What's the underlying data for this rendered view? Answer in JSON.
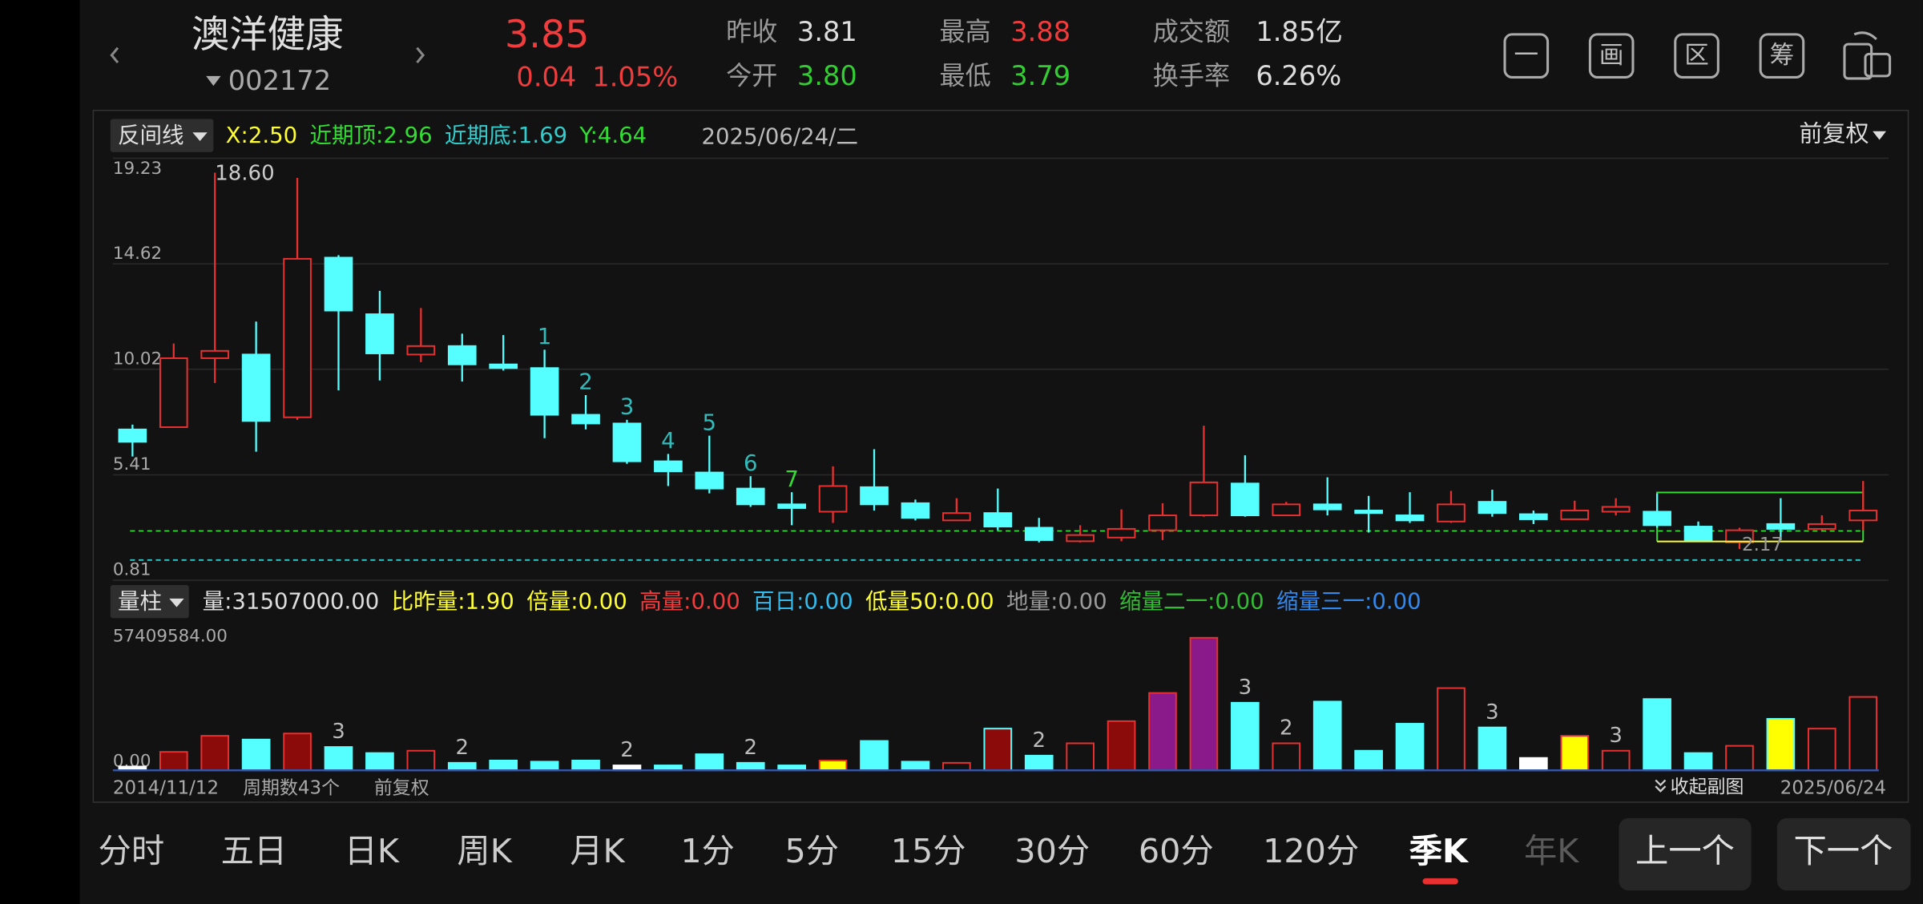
{
  "header": {
    "name": "澳洋健康",
    "code": "002172",
    "price": "3.85",
    "change": "0.04",
    "change_pct": "1.05%",
    "stats": [
      {
        "label": "昨收",
        "value": "3.81",
        "color": "#dddddd"
      },
      {
        "label": "今开",
        "value": "3.80",
        "color": "#33cc33"
      },
      {
        "label": "最高",
        "value": "3.88",
        "color": "#f03c3c"
      },
      {
        "label": "最低",
        "value": "3.79",
        "color": "#33cc33"
      },
      {
        "label": "成交额",
        "value": "1.85亿",
        "color": "#dddddd"
      },
      {
        "label": "换手率",
        "value": "6.26%",
        "color": "#dddddd"
      }
    ],
    "tools": [
      "一",
      "画",
      "区",
      "筹"
    ]
  },
  "chart_data": {
    "type": "candlestick",
    "indicator": "反间线",
    "indicator_fields": [
      {
        "name": "X:",
        "value": 2.5,
        "label": "2.50",
        "color": "#ffff33"
      },
      {
        "name": "近期顶:",
        "value": 2.96,
        "label": "2.96",
        "color": "#33dd33"
      },
      {
        "name": "近期底:",
        "value": 1.69,
        "label": "1.69",
        "color": "#33cccc"
      },
      {
        "name": "Y:",
        "value": 4.64,
        "label": "4.64",
        "color": "#33dd33"
      }
    ],
    "date": "2025/06/24/二",
    "adjust": "前复权",
    "up_color": "#e83030",
    "down_color": "#55ffff",
    "ylim": [
      0.81,
      19.23
    ],
    "yticks": [
      0.81,
      5.41,
      10.02,
      14.62,
      19.23
    ],
    "grid": true,
    "open": [
      7.39,
      7.49,
      10.5,
      10.66,
      7.92,
      14.89,
      12.42,
      10.66,
      11.03,
      10.23,
      10.07,
      8.03,
      7.65,
      6.0,
      5.51,
      4.81,
      4.12,
      3.8,
      4.87,
      4.17,
      3.42,
      3.74,
      3.1,
      2.51,
      2.67,
      2.99,
      3.64,
      5.03,
      3.64,
      4.12,
      3.85,
      3.64,
      3.37,
      4.23,
      3.69,
      3.47,
      3.8,
      3.8,
      3.15,
      2.46,
      3.26,
      3.05,
      3.42
    ],
    "high": [
      7.6,
      11.14,
      18.6,
      12.1,
      18.37,
      15.0,
      13.44,
      12.69,
      11.57,
      11.51,
      10.87,
      8.89,
      7.81,
      6.32,
      7.12,
      5.35,
      4.65,
      5.78,
      6.53,
      4.33,
      4.39,
      4.81,
      3.53,
      3.21,
      3.9,
      4.17,
      7.55,
      6.26,
      4.23,
      5.3,
      4.49,
      4.65,
      4.71,
      4.76,
      3.85,
      4.28,
      4.39,
      4.6,
      3.37,
      3.1,
      4.39,
      3.64,
      5.14
    ],
    "low": [
      6.21,
      7.49,
      9.42,
      6.42,
      7.81,
      9.1,
      9.53,
      10.33,
      9.48,
      9.96,
      7.01,
      7.39,
      5.89,
      4.92,
      4.6,
      4.01,
      3.21,
      3.31,
      3.85,
      3.42,
      3.42,
      2.99,
      2.46,
      2.46,
      2.51,
      2.56,
      3.58,
      3.58,
      3.64,
      3.64,
      2.89,
      3.31,
      3.31,
      3.58,
      3.26,
      3.47,
      3.64,
      3.1,
      2.51,
      2.17,
      2.56,
      2.99,
      2.99
    ],
    "close": [
      6.85,
      10.5,
      10.82,
      7.76,
      14.84,
      12.58,
      10.71,
      11.03,
      10.23,
      10.07,
      8.03,
      7.65,
      6.0,
      5.56,
      4.81,
      4.12,
      3.96,
      4.92,
      4.12,
      3.53,
      3.74,
      3.15,
      2.56,
      2.78,
      3.05,
      3.64,
      5.08,
      3.64,
      4.12,
      3.9,
      3.74,
      3.42,
      4.12,
      3.74,
      3.47,
      3.85,
      4.01,
      3.21,
      2.56,
      2.99,
      3.05,
      3.26,
      3.85
    ],
    "count_labels": [
      {
        "index": 10,
        "label": "1",
        "color": "#33bbbb"
      },
      {
        "index": 11,
        "label": "2",
        "color": "#33bbbb"
      },
      {
        "index": 12,
        "label": "3",
        "color": "#33bbbb"
      },
      {
        "index": 13,
        "label": "4",
        "color": "#33bbbb"
      },
      {
        "index": 14,
        "label": "5",
        "color": "#33bbbb"
      },
      {
        "index": 15,
        "label": "6",
        "color": "#33bbbb"
      },
      {
        "index": 16,
        "label": "7",
        "color": "#33dd33"
      }
    ],
    "max_label": {
      "index": 2,
      "label": "18.60"
    },
    "min_label": {
      "index": 39,
      "label": "2.17"
    }
  },
  "volume": {
    "indicator": "量柱",
    "fields": [
      {
        "name": "量:",
        "label": "31507000.00",
        "color": "#dddddd"
      },
      {
        "name": "比昨量:",
        "label": "1.90",
        "color": "#ffff33"
      },
      {
        "name": "倍量:",
        "label": "0.00",
        "color": "#ffff33"
      },
      {
        "name": "高量:",
        "label": "0.00",
        "color": "#f03c3c"
      },
      {
        "name": "百日:",
        "label": "0.00",
        "color": "#33bbee"
      },
      {
        "name": "低量50:",
        "label": "0.00",
        "color": "#ffff33"
      },
      {
        "name": "地量:",
        "label": "0.00",
        "color": "#999999"
      },
      {
        "name": "缩量二一:",
        "label": "0.00",
        "color": "#33bb33"
      },
      {
        "name": "缩量三一:",
        "label": "0.00",
        "color": "#3388ee"
      }
    ],
    "ylim": [
      0,
      57409584
    ],
    "yticks": [
      {
        "value": 57409584,
        "label": "57409584.00"
      },
      {
        "value": 0,
        "label": "0.00"
      }
    ],
    "values": [
      1600000,
      7900000,
      14800000,
      13200000,
      15800000,
      10000000,
      7400000,
      8400000,
      3200000,
      4200000,
      3700000,
      4200000,
      2100000,
      2100000,
      6900000,
      3200000,
      2100000,
      4200000,
      12600000,
      3700000,
      3200000,
      17900000,
      6300000,
      11600000,
      21100000,
      33200000,
      56900000,
      29000000,
      11600000,
      29500000,
      8400000,
      20000000,
      35300000,
      18400000,
      5300000,
      14800000,
      8400000,
      30600000,
      7400000,
      10500000,
      22100000,
      17900000,
      31507000
    ],
    "styles": [
      "white",
      "upfill",
      "upfill",
      "down",
      "upfill",
      "down",
      "down",
      "up",
      "down",
      "down",
      "down",
      "down",
      "white",
      "down",
      "down",
      "down",
      "down",
      "yellow",
      "down",
      "down",
      "up",
      "downfill",
      "down",
      "up",
      "upfill",
      "purple",
      "purple",
      "down",
      "up",
      "down",
      "down",
      "down",
      "up",
      "down",
      "white",
      "yellow",
      "up",
      "down",
      "down",
      "up",
      "yellow2",
      "up",
      "up"
    ],
    "style_colors": {
      "down": {
        "fill": "#55ffff",
        "stroke": "#55ffff"
      },
      "up": {
        "fill": "#121212",
        "stroke": "#e83030"
      },
      "upfill": {
        "fill": "#8b0a0a",
        "stroke": "#e83030"
      },
      "white": {
        "fill": "#ffffff",
        "stroke": "#ffffff"
      },
      "yellow": {
        "fill": "#ffff00",
        "stroke": "#e83030"
      },
      "yellow2": {
        "fill": "#ffff00",
        "stroke": "#55ffff"
      },
      "purple": {
        "fill": "#8a1a8a",
        "stroke": "#e83030"
      },
      "downfill": {
        "fill": "#8b0a0a",
        "stroke": "#55ffff"
      }
    },
    "count_labels": [
      {
        "index": 5,
        "label": "3"
      },
      {
        "index": 8,
        "label": "2"
      },
      {
        "index": 12,
        "label": "2"
      },
      {
        "index": 15,
        "label": "2"
      },
      {
        "index": 22,
        "label": "2"
      },
      {
        "index": 27,
        "label": "3"
      },
      {
        "index": 28,
        "label": "2"
      },
      {
        "index": 33,
        "label": "3"
      },
      {
        "index": 36,
        "label": "3"
      }
    ]
  },
  "footer": {
    "start_date": "2014/11/12",
    "period": "周期数43个",
    "adjust": "前复权",
    "collapse": "收起副图",
    "end_date": "2025/06/24"
  },
  "tabs": [
    "分时",
    "五日",
    "日K",
    "周K",
    "月K",
    "1分",
    "5分",
    "15分",
    "30分",
    "60分",
    "120分",
    "季K",
    "年K"
  ],
  "active_tab": 11,
  "dimmed_tab": 12,
  "buttons": [
    "上一个",
    "下一个"
  ]
}
